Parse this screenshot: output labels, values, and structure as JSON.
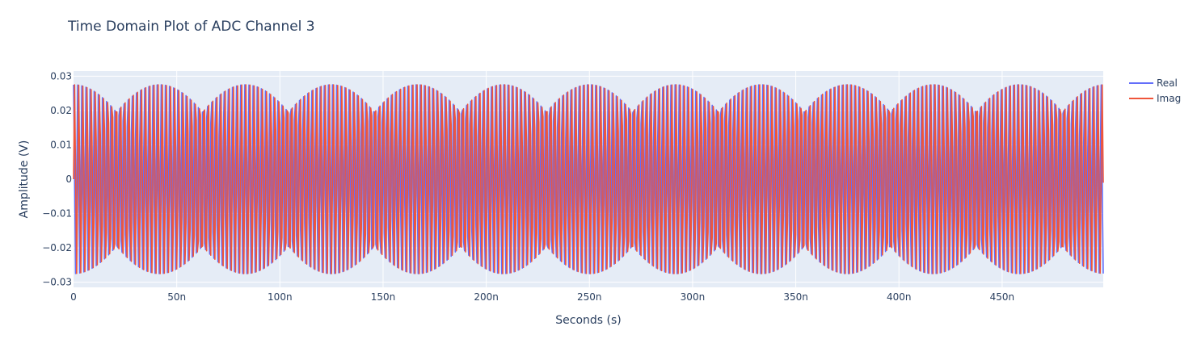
{
  "colors": {
    "plot_bg": "#E5ECF6",
    "grid": "#ffffff",
    "text": "#2a3f5f",
    "real": "#636EFA",
    "imag": "#EF553B"
  },
  "chart_data": {
    "type": "line",
    "title": "Time Domain Plot of ADC Channel 3",
    "xlabel": "Seconds (s)",
    "ylabel": "Amplitude (V)",
    "xlim": [
      0,
      4.99e-07
    ],
    "ylim": [
      -0.0315,
      0.0315
    ],
    "x_ticks": [
      {
        "value": 0,
        "label": "0"
      },
      {
        "value": 5e-08,
        "label": "50n"
      },
      {
        "value": 1e-07,
        "label": "100n"
      },
      {
        "value": 1.5e-07,
        "label": "150n"
      },
      {
        "value": 2e-07,
        "label": "200n"
      },
      {
        "value": 2.5e-07,
        "label": "250n"
      },
      {
        "value": 3e-07,
        "label": "300n"
      },
      {
        "value": 3.5e-07,
        "label": "350n"
      },
      {
        "value": 4e-07,
        "label": "400n"
      },
      {
        "value": 4.5e-07,
        "label": "450n"
      }
    ],
    "y_ticks": [
      {
        "value": 0.03,
        "label": "0.03"
      },
      {
        "value": 0.02,
        "label": "0.02"
      },
      {
        "value": 0.01,
        "label": "0.01"
      },
      {
        "value": 0,
        "label": "0"
      },
      {
        "value": -0.01,
        "label": "−0.01"
      },
      {
        "value": -0.02,
        "label": "−0.02"
      },
      {
        "value": -0.03,
        "label": "−0.03"
      }
    ],
    "grid": true,
    "legend_position": "top-right",
    "series": [
      {
        "name": "Real",
        "color": "#636EFA",
        "amplitude": 0.0275,
        "sample_period": 5e-10,
        "carrier_cycles_per_sample": 0.247,
        "phase": 0
      },
      {
        "name": "Imag",
        "color": "#EF553B",
        "amplitude": 0.0275,
        "sample_period": 5e-10,
        "carrier_cycles_per_sample": 0.247,
        "phase": -1.5708
      }
    ]
  }
}
